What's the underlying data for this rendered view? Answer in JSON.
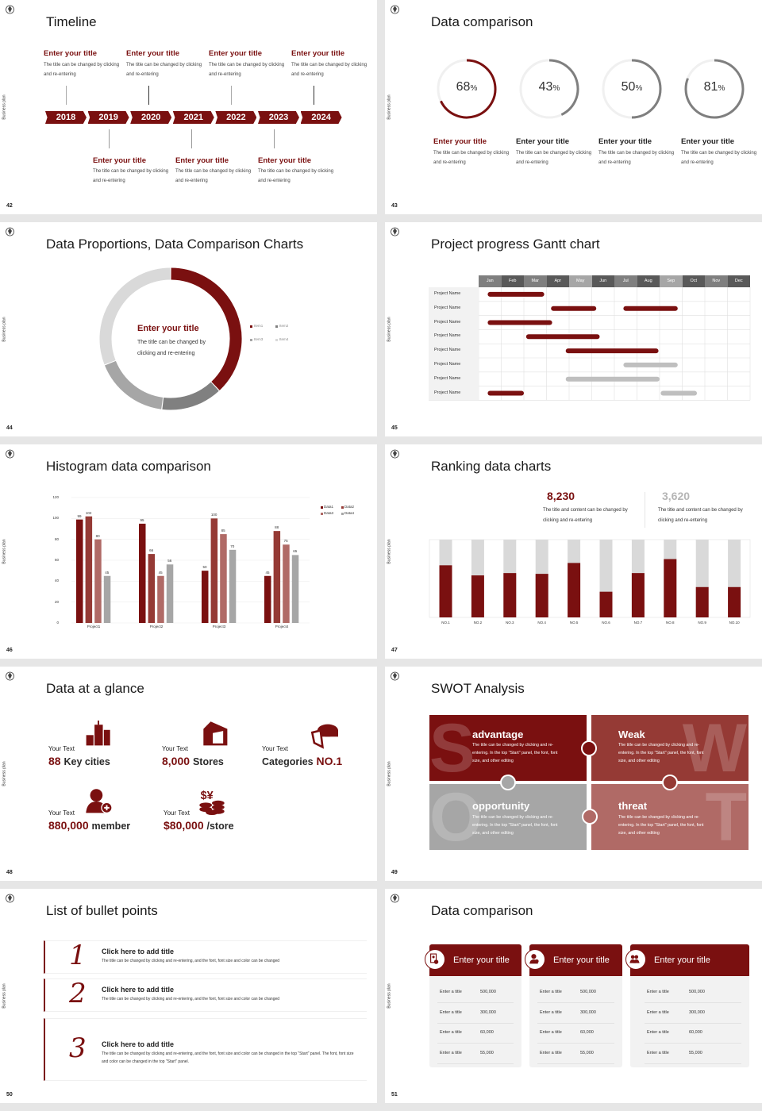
{
  "brand": {
    "side_label": "Business plan",
    "accent": "#7a1010",
    "logo_icon": "crest-logo-icon"
  },
  "slides": [
    {
      "page": "42",
      "title": "Timeline",
      "years": [
        "2018",
        "2019",
        "2020",
        "2021",
        "2022",
        "2023",
        "2024"
      ],
      "top_items": [
        {
          "title": "Enter your title",
          "desc": "The title can be changed by clicking and re-entering"
        },
        {
          "title": "Enter your title",
          "desc": "The title can be changed by clicking and re-entering"
        },
        {
          "title": "Enter your title",
          "desc": "The title can be changed by clicking and re-entering"
        },
        {
          "title": "Enter your title",
          "desc": "The title can be changed by clicking and re-entering"
        }
      ],
      "bottom_items": [
        {
          "title": "Enter your title",
          "desc": "The title can be changed by clicking and re-entering"
        },
        {
          "title": "Enter your title",
          "desc": "The title can be changed by clicking and re-entering"
        },
        {
          "title": "Enter your title",
          "desc": "The title can be changed by clicking and re-entering"
        }
      ]
    },
    {
      "page": "43",
      "title": "Data comparison",
      "rings": [
        {
          "value": "68",
          "unit": "%",
          "color": "#7a1010",
          "title": "Enter your title",
          "desc": "The title can be changed by clicking and re-entering"
        },
        {
          "value": "43",
          "unit": "%",
          "color": "#7f7f7f",
          "title": "Enter your title",
          "desc": "The title can be changed by clicking and re-entering"
        },
        {
          "value": "50",
          "unit": "%",
          "color": "#7f7f7f",
          "title": "Enter your title",
          "desc": "The title can be changed by clicking and re-entering"
        },
        {
          "value": "81",
          "unit": "%",
          "color": "#7f7f7f",
          "title": "Enter your title",
          "desc": "The title can be changed by clicking and re-entering"
        }
      ]
    },
    {
      "page": "44",
      "title": "Data Proportions, Data Comparison Charts",
      "center_title": "Enter your title",
      "center_desc": "The title can be changed by clicking and re-entering"
    },
    {
      "page": "45",
      "title": "Project progress Gantt chart"
    },
    {
      "page": "46",
      "title": "Histogram data comparison"
    },
    {
      "page": "47",
      "title": "Ranking data charts",
      "stats": [
        {
          "value": "8,230",
          "color": "#7a1010",
          "desc": "The title and content can be changed by clicking and re-entering"
        },
        {
          "value": "3,620",
          "color": "#b5b5b5",
          "desc": "The title and content can be changed by clicking and re-entering"
        }
      ]
    },
    {
      "page": "48",
      "title": "Data at a glance",
      "items": [
        {
          "label": "Your Text",
          "number": "88",
          "unit": "Key cities",
          "icon": "city-buildings-icon"
        },
        {
          "label": "Your Text",
          "number": "8,000",
          "unit": "Stores",
          "icon": "store-icon"
        },
        {
          "label": "Your Text",
          "prefix": "Categories",
          "number": "NO.1",
          "icon": "pie-chart-icon"
        },
        {
          "label": "Your Text",
          "number": "880,000",
          "unit": "member",
          "icon": "add-member-icon"
        },
        {
          "label": "Your Text",
          "number": "$80,000",
          "unit": "/store",
          "icon": "coins-icon"
        }
      ]
    },
    {
      "page": "49",
      "title": "SWOT Analysis",
      "quads": [
        {
          "letter": "S",
          "title": "advantage",
          "color": "#7a1010",
          "desc": "The title can be changed by clicking and re-entering. In the top \"Start\" panel, the font, font size, and other editing"
        },
        {
          "letter": "W",
          "title": "Weak",
          "color": "#953a35",
          "desc": "The title can be changed by clicking and re-entering. In the top \"Start\" panel, the font, font size, and other editing"
        },
        {
          "letter": "O",
          "title": "opportunity",
          "color": "#a6a6a6",
          "desc": "The title can be changed by clicking and re-entering. In the top \"Start\" panel, the font, font size, and other editing"
        },
        {
          "letter": "T",
          "title": "threat",
          "color": "#b06a66",
          "desc": "The title can be changed by clicking and re-entering. In the top \"Start\" panel, the font, font size, and other editing"
        }
      ]
    },
    {
      "page": "50",
      "title": "List of bullet points",
      "bullets": [
        {
          "number": "1",
          "title": "Click here to add title",
          "desc": "The title can be changed by clicking and re-entering, and the font, font size and color can be changed"
        },
        {
          "number": "2",
          "title": "Click here to add title",
          "desc": "The title can be changed by clicking and re-entering, and the font, font size and color can be changed"
        },
        {
          "number": "3",
          "title": "Click here to add title",
          "desc": "The title can be changed by clicking and re-entering, and the font, font size and color can be changed in the top \"Start\" panel. The font, font size and color can be changed in the top \"Start\" panel."
        }
      ]
    },
    {
      "page": "51",
      "title": "Data comparison",
      "cards": [
        {
          "title": "Enter your title",
          "icon": "tablet-user-icon",
          "rows": [
            {
              "label": "Enter a title",
              "value": "500,000"
            },
            {
              "label": "Enter a title",
              "value": "300,000"
            },
            {
              "label": "Enter a title",
              "value": "60,000"
            },
            {
              "label": "Enter a title",
              "value": "55,000"
            }
          ]
        },
        {
          "title": "Enter your title",
          "icon": "user-info-icon",
          "rows": [
            {
              "label": "Enter a title",
              "value": "500,000"
            },
            {
              "label": "Enter a title",
              "value": "300,000"
            },
            {
              "label": "Enter a title",
              "value": "60,000"
            },
            {
              "label": "Enter a title",
              "value": "55,000"
            }
          ]
        },
        {
          "title": "Enter your title",
          "icon": "user-group-icon",
          "rows": [
            {
              "label": "Enter a title",
              "value": "500,000"
            },
            {
              "label": "Enter a title",
              "value": "300,000"
            },
            {
              "label": "Enter a title",
              "value": "60,000"
            },
            {
              "label": "Enter a title",
              "value": "55,000"
            }
          ]
        }
      ]
    }
  ],
  "chart_data": [
    {
      "type": "pie",
      "variant": "donut",
      "legend": "right",
      "categories": [
        "Item1",
        "Item2",
        "Item3",
        "Item4"
      ],
      "values": [
        38,
        14,
        17,
        31
      ],
      "colors": [
        "#7a1010",
        "#808080",
        "#a6a6a6",
        "#d9d9d9"
      ]
    },
    {
      "type": "gantt",
      "categories": [
        "Jan",
        "Feb",
        "Mar",
        "Apr",
        "May",
        "Jun",
        "Jul",
        "Aug",
        "Sep",
        "Oct",
        "Nov",
        "Dec"
      ],
      "header_colors": [
        "#7f7f7f",
        "#595959",
        "#7f7f7f",
        "#595959",
        "#a6a6a6",
        "#595959",
        "#7f7f7f",
        "#595959",
        "#a6a6a6",
        "#595959",
        "#7f7f7f",
        "#595959"
      ],
      "rows": [
        {
          "name": "Project Name",
          "bars": [
            {
              "start": 0.4,
              "end": 2.9,
              "color": "#7a1010"
            }
          ]
        },
        {
          "name": "Project Name",
          "bars": [
            {
              "start": 3.2,
              "end": 5.2,
              "color": "#7a1010"
            },
            {
              "start": 6.4,
              "end": 8.8,
              "color": "#7a1010"
            }
          ]
        },
        {
          "name": "Project Name",
          "bars": [
            {
              "start": 0.4,
              "end": 3.25,
              "color": "#7a1010"
            }
          ]
        },
        {
          "name": "Project Name",
          "bars": [
            {
              "start": 2.1,
              "end": 5.35,
              "color": "#7a1010"
            }
          ]
        },
        {
          "name": "Project Name",
          "bars": [
            {
              "start": 3.85,
              "end": 7.95,
              "color": "#7a1010"
            }
          ]
        },
        {
          "name": "Project Name",
          "bars": [
            {
              "start": 6.4,
              "end": 8.8,
              "color": "#bfbfbf"
            }
          ]
        },
        {
          "name": "Project Name",
          "bars": [
            {
              "start": 3.85,
              "end": 8.0,
              "color": "#bfbfbf"
            }
          ]
        },
        {
          "name": "Project Name",
          "bars": [
            {
              "start": 0.4,
              "end": 2.0,
              "color": "#7a1010"
            },
            {
              "start": 8.05,
              "end": 9.65,
              "color": "#bfbfbf"
            }
          ]
        }
      ]
    },
    {
      "type": "bar",
      "categories": [
        "Project1",
        "Project2",
        "Project3",
        "Project4"
      ],
      "series": [
        {
          "name": "Data1",
          "color": "#7a1010",
          "values": [
            99,
            95,
            50,
            45
          ]
        },
        {
          "name": "Data2",
          "color": "#953a35",
          "values": [
            102,
            66,
            100,
            88
          ]
        },
        {
          "name": "Data3",
          "color": "#b06a66",
          "values": [
            80,
            45,
            85,
            75
          ]
        },
        {
          "name": "Data4",
          "color": "#a6a6a6",
          "values": [
            45,
            56,
            70,
            65
          ]
        }
      ],
      "yticks": [
        "0",
        "20",
        "40",
        "60",
        "80",
        "100",
        "120"
      ],
      "ylim": [
        0,
        120
      ],
      "grid": true,
      "legend": "top-right"
    },
    {
      "type": "bar",
      "variant": "stacked-percent",
      "categories": [
        "NO.1",
        "NO.2",
        "NO.3",
        "NO.4",
        "NO.5",
        "NO.6",
        "NO.7",
        "NO.8",
        "NO.9",
        "NO.10"
      ],
      "values": [
        67,
        54,
        57,
        56,
        70,
        33,
        57,
        75,
        39,
        39
      ],
      "ylim": [
        0,
        100
      ],
      "colors": {
        "value": "#7a1010",
        "remainder": "#d9d9d9"
      }
    }
  ]
}
